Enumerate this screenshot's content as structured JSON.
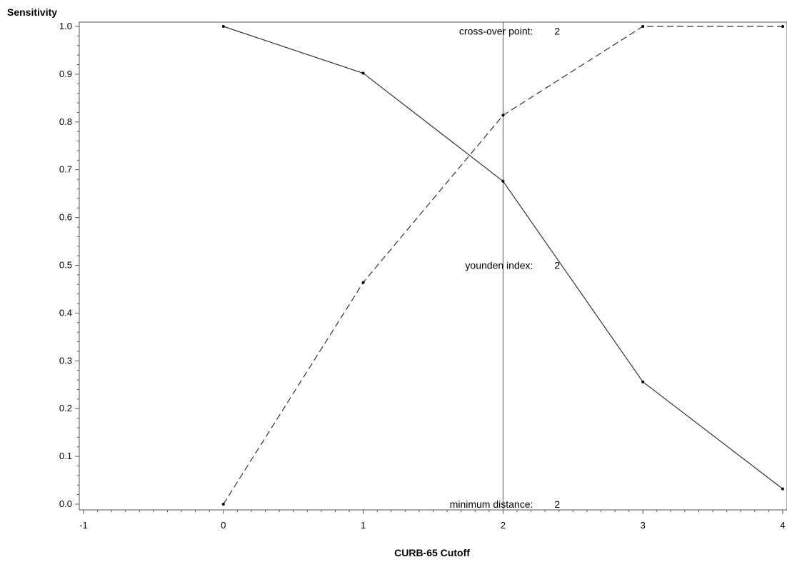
{
  "chart_data": {
    "type": "line",
    "title": "",
    "xlabel": "CURB-65 Cutoff",
    "ylabel": "Sensitivity",
    "xlim": [
      -1,
      4
    ],
    "ylim": [
      0,
      1
    ],
    "x_ticks": [
      "-1",
      "0",
      "1",
      "2",
      "3",
      "4"
    ],
    "y_ticks": [
      "0.0",
      "0.1",
      "0.2",
      "0.3",
      "0.4",
      "0.5",
      "0.6",
      "0.7",
      "0.8",
      "0.9",
      "1.0"
    ],
    "grid": false,
    "legend": "none",
    "series": [
      {
        "style": "solid",
        "color": "#333333",
        "x": [
          0,
          1,
          2,
          3,
          4
        ],
        "y": [
          1.0,
          0.902,
          0.676,
          0.256,
          0.032
        ]
      },
      {
        "style": "dashed",
        "color": "#333333",
        "x": [
          0,
          1,
          2,
          3,
          4
        ],
        "y": [
          0.0,
          0.464,
          0.814,
          1.0,
          1.0
        ]
      }
    ],
    "reference_line": {
      "x": 2
    },
    "annotations": [
      {
        "label": "cross-over point:",
        "value": "2",
        "x": 2,
        "y": 0.99
      },
      {
        "label": "younden index:",
        "value": "2",
        "x": 2,
        "y": 0.5
      },
      {
        "label": "minimum distance:",
        "value": "2",
        "x": 2,
        "y": 0.0
      }
    ]
  }
}
